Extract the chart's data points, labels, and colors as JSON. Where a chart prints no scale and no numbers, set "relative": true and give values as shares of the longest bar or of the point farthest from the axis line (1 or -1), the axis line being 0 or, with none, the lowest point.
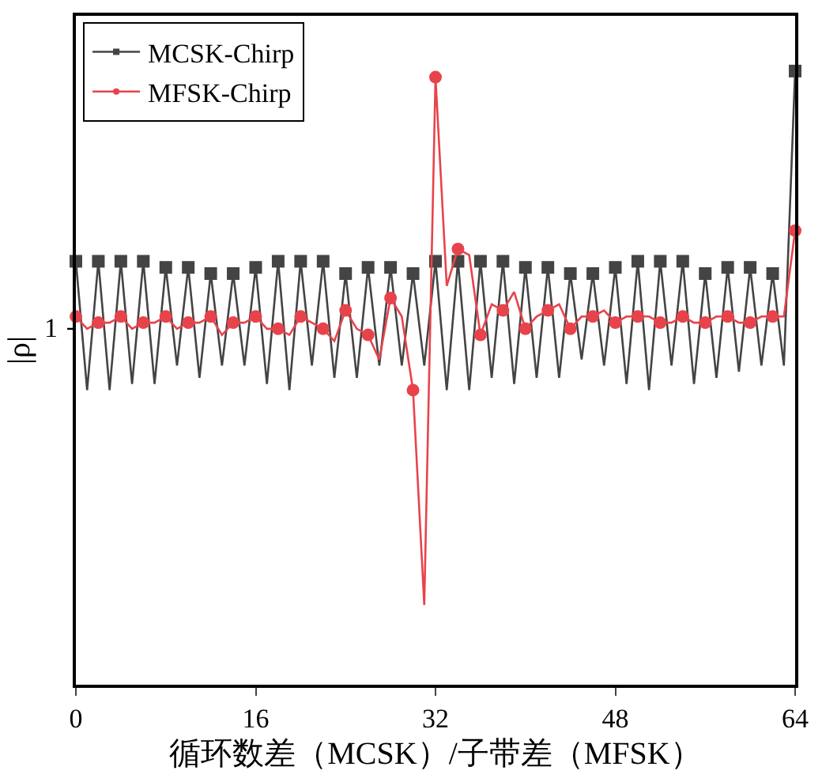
{
  "chart_data": {
    "type": "line",
    "relative": true,
    "xlabel": "循环数差（MCSK）/子带差（MFSK）",
    "ylabel": "|ρ|",
    "xlim": [
      0,
      64
    ],
    "xticks": [
      0,
      16,
      32,
      48,
      64
    ],
    "annotations": [
      "1"
    ],
    "grid": false,
    "legend": "top left",
    "line_style": "solid",
    "x": [
      0,
      1,
      2,
      3,
      4,
      5,
      6,
      7,
      8,
      9,
      10,
      11,
      12,
      13,
      14,
      15,
      16,
      17,
      18,
      19,
      20,
      21,
      22,
      23,
      24,
      25,
      26,
      27,
      28,
      29,
      30,
      31,
      32,
      33,
      34,
      35,
      36,
      37,
      38,
      39,
      40,
      41,
      42,
      43,
      44,
      45,
      46,
      47,
      48,
      49,
      50,
      51,
      52,
      53,
      54,
      55,
      56,
      57,
      58,
      59,
      60,
      61,
      62,
      63,
      64
    ],
    "series": [
      {
        "name": "MCSK-Chirp",
        "color": "#444444",
        "marker": "square",
        "values": [
          0.69,
          0.48,
          0.69,
          0.48,
          0.69,
          0.49,
          0.69,
          0.49,
          0.68,
          0.52,
          0.68,
          0.5,
          0.67,
          0.52,
          0.67,
          0.52,
          0.68,
          0.49,
          0.69,
          0.48,
          0.69,
          0.52,
          0.69,
          0.5,
          0.67,
          0.5,
          0.68,
          0.52,
          0.68,
          0.52,
          0.67,
          0.52,
          0.69,
          0.48,
          0.69,
          0.48,
          0.69,
          0.5,
          0.69,
          0.49,
          0.68,
          0.5,
          0.68,
          0.5,
          0.67,
          0.53,
          0.67,
          0.52,
          0.68,
          0.49,
          0.69,
          0.48,
          0.69,
          0.52,
          0.69,
          0.49,
          0.67,
          0.5,
          0.68,
          0.51,
          0.68,
          0.52,
          0.67,
          0.52,
          1.0
        ]
      },
      {
        "name": "MFSK-Chirp",
        "color": "#e8434b",
        "marker": "circle",
        "values": [
          0.6,
          0.58,
          0.59,
          0.59,
          0.6,
          0.58,
          0.59,
          0.59,
          0.6,
          0.58,
          0.59,
          0.59,
          0.6,
          0.57,
          0.59,
          0.59,
          0.6,
          0.58,
          0.58,
          0.57,
          0.6,
          0.59,
          0.58,
          0.56,
          0.61,
          0.58,
          0.57,
          0.53,
          0.63,
          0.6,
          0.48,
          0.13,
          0.99,
          0.65,
          0.71,
          0.7,
          0.57,
          0.62,
          0.61,
          0.64,
          0.58,
          0.6,
          0.61,
          0.62,
          0.58,
          0.6,
          0.6,
          0.61,
          0.59,
          0.6,
          0.6,
          0.6,
          0.59,
          0.59,
          0.6,
          0.59,
          0.59,
          0.6,
          0.6,
          0.59,
          0.59,
          0.6,
          0.6,
          0.6,
          0.74
        ]
      }
    ]
  }
}
